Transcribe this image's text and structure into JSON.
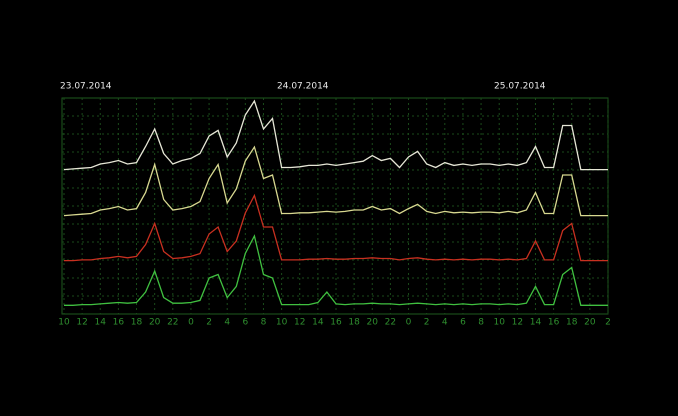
{
  "chart_data": {
    "type": "line",
    "dates": [
      "23.07.2014",
      "24.07.2014",
      "25.07.2014"
    ],
    "x": [
      0,
      1,
      2,
      3,
      4,
      5,
      6,
      7,
      8,
      9,
      10,
      11,
      12,
      13,
      14,
      15,
      16,
      17,
      18,
      19,
      20,
      21,
      22,
      23,
      24,
      25,
      26,
      27,
      28,
      29,
      30,
      31,
      32,
      33,
      34,
      35,
      36,
      37,
      38,
      39,
      40,
      41,
      42,
      43,
      44,
      45,
      46,
      47,
      48,
      49,
      50,
      51,
      52,
      53,
      54,
      55,
      56,
      57,
      58,
      59,
      60
    ],
    "xlim": [
      0,
      60
    ],
    "xticks": [
      {
        "value": 0,
        "label": "10"
      },
      {
        "value": 2,
        "label": "12"
      },
      {
        "value": 4,
        "label": "14"
      },
      {
        "value": 6,
        "label": "16"
      },
      {
        "value": 8,
        "label": "18"
      },
      {
        "value": 10,
        "label": "20"
      },
      {
        "value": 12,
        "label": "22"
      },
      {
        "value": 14,
        "label": "0"
      },
      {
        "value": 16,
        "label": "2"
      },
      {
        "value": 18,
        "label": "4"
      },
      {
        "value": 20,
        "label": "6"
      },
      {
        "value": 22,
        "label": "8"
      },
      {
        "value": 24,
        "label": "10"
      },
      {
        "value": 26,
        "label": "12"
      },
      {
        "value": 28,
        "label": "14"
      },
      {
        "value": 30,
        "label": "16"
      },
      {
        "value": 32,
        "label": "18"
      },
      {
        "value": 34,
        "label": "20"
      },
      {
        "value": 36,
        "label": "22"
      },
      {
        "value": 38,
        "label": "0"
      },
      {
        "value": 40,
        "label": "2"
      },
      {
        "value": 42,
        "label": "4"
      },
      {
        "value": 44,
        "label": "6"
      },
      {
        "value": 46,
        "label": "8"
      },
      {
        "value": 48,
        "label": "10"
      },
      {
        "value": 50,
        "label": "12"
      },
      {
        "value": 52,
        "label": "14"
      },
      {
        "value": 54,
        "label": "16"
      },
      {
        "value": 56,
        "label": "18"
      },
      {
        "value": 58,
        "label": "20"
      },
      {
        "value": 60,
        "label": "2"
      }
    ],
    "grid": true,
    "series": [
      {
        "color": "#e6e6d6",
        "values": [
          2,
          3,
          4,
          5,
          10,
          12,
          15,
          10,
          12,
          35,
          60,
          25,
          10,
          15,
          18,
          25,
          50,
          58,
          20,
          40,
          80,
          100,
          60,
          75,
          5,
          5,
          6,
          8,
          8,
          10,
          8,
          10,
          12,
          14,
          22,
          15,
          18,
          5,
          20,
          28,
          10,
          5,
          12,
          8,
          10,
          8,
          10,
          10,
          8,
          10,
          8,
          12,
          35,
          5,
          5,
          65,
          65,
          2,
          2,
          2,
          2
        ]
      },
      {
        "color": "#d8d890",
        "values": [
          2,
          3,
          4,
          5,
          10,
          12,
          15,
          10,
          12,
          35,
          75,
          25,
          10,
          12,
          15,
          22,
          55,
          75,
          20,
          40,
          80,
          100,
          55,
          60,
          5,
          5,
          6,
          6,
          7,
          8,
          7,
          8,
          10,
          10,
          15,
          10,
          12,
          5,
          12,
          18,
          8,
          5,
          8,
          6,
          7,
          6,
          7,
          7,
          6,
          8,
          6,
          10,
          35,
          5,
          5,
          60,
          60,
          2,
          2,
          2,
          2
        ]
      },
      {
        "color": "#c83020",
        "values": [
          2,
          2,
          3,
          3,
          5,
          6,
          8,
          6,
          8,
          25,
          55,
          15,
          5,
          6,
          8,
          12,
          40,
          50,
          15,
          30,
          70,
          95,
          50,
          50,
          3,
          3,
          3,
          4,
          4,
          5,
          4,
          4,
          5,
          5,
          6,
          5,
          5,
          3,
          5,
          6,
          4,
          3,
          4,
          3,
          4,
          3,
          4,
          4,
          3,
          4,
          3,
          5,
          30,
          3,
          3,
          45,
          55,
          2,
          2,
          2,
          2
        ]
      },
      {
        "color": "#40c040",
        "values": [
          1,
          1,
          2,
          2,
          3,
          4,
          5,
          4,
          5,
          20,
          50,
          12,
          4,
          4,
          5,
          8,
          40,
          45,
          12,
          28,
          75,
          100,
          45,
          40,
          2,
          2,
          2,
          2,
          5,
          20,
          3,
          2,
          3,
          3,
          4,
          3,
          3,
          2,
          3,
          4,
          3,
          2,
          3,
          2,
          3,
          2,
          3,
          3,
          2,
          3,
          2,
          4,
          28,
          2,
          2,
          45,
          55,
          1,
          1,
          1,
          1
        ]
      }
    ]
  }
}
